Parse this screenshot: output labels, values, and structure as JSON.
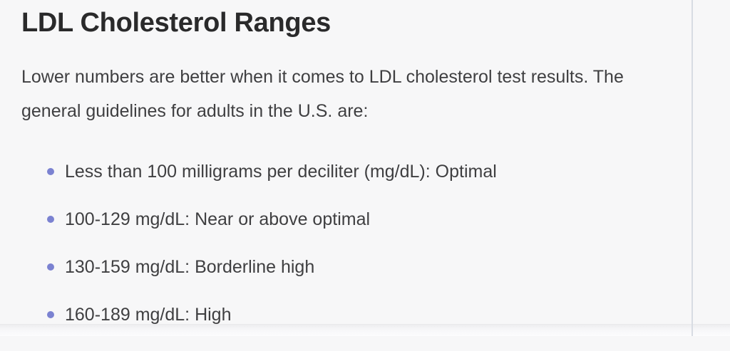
{
  "colors": {
    "page_background": "#f7f7f8",
    "heading_text": "#2a2a2b",
    "body_text": "#3f3f41",
    "bullet": "#7b82d1",
    "divider": "#d8dce3"
  },
  "article": {
    "title": "LDL Cholesterol Ranges",
    "intro": {
      "line1": "Lower numbers are better when it comes to LDL cholesterol test results. The",
      "line2": "general guidelines for adults in the U.S. are:"
    },
    "guidelines": [
      "Less than 100 milligrams per deciliter (mg/dL): Optimal",
      "100-129 mg/dL: Near or above optimal",
      "130-159 mg/dL: Borderline high",
      "160-189 mg/dL: High"
    ]
  }
}
